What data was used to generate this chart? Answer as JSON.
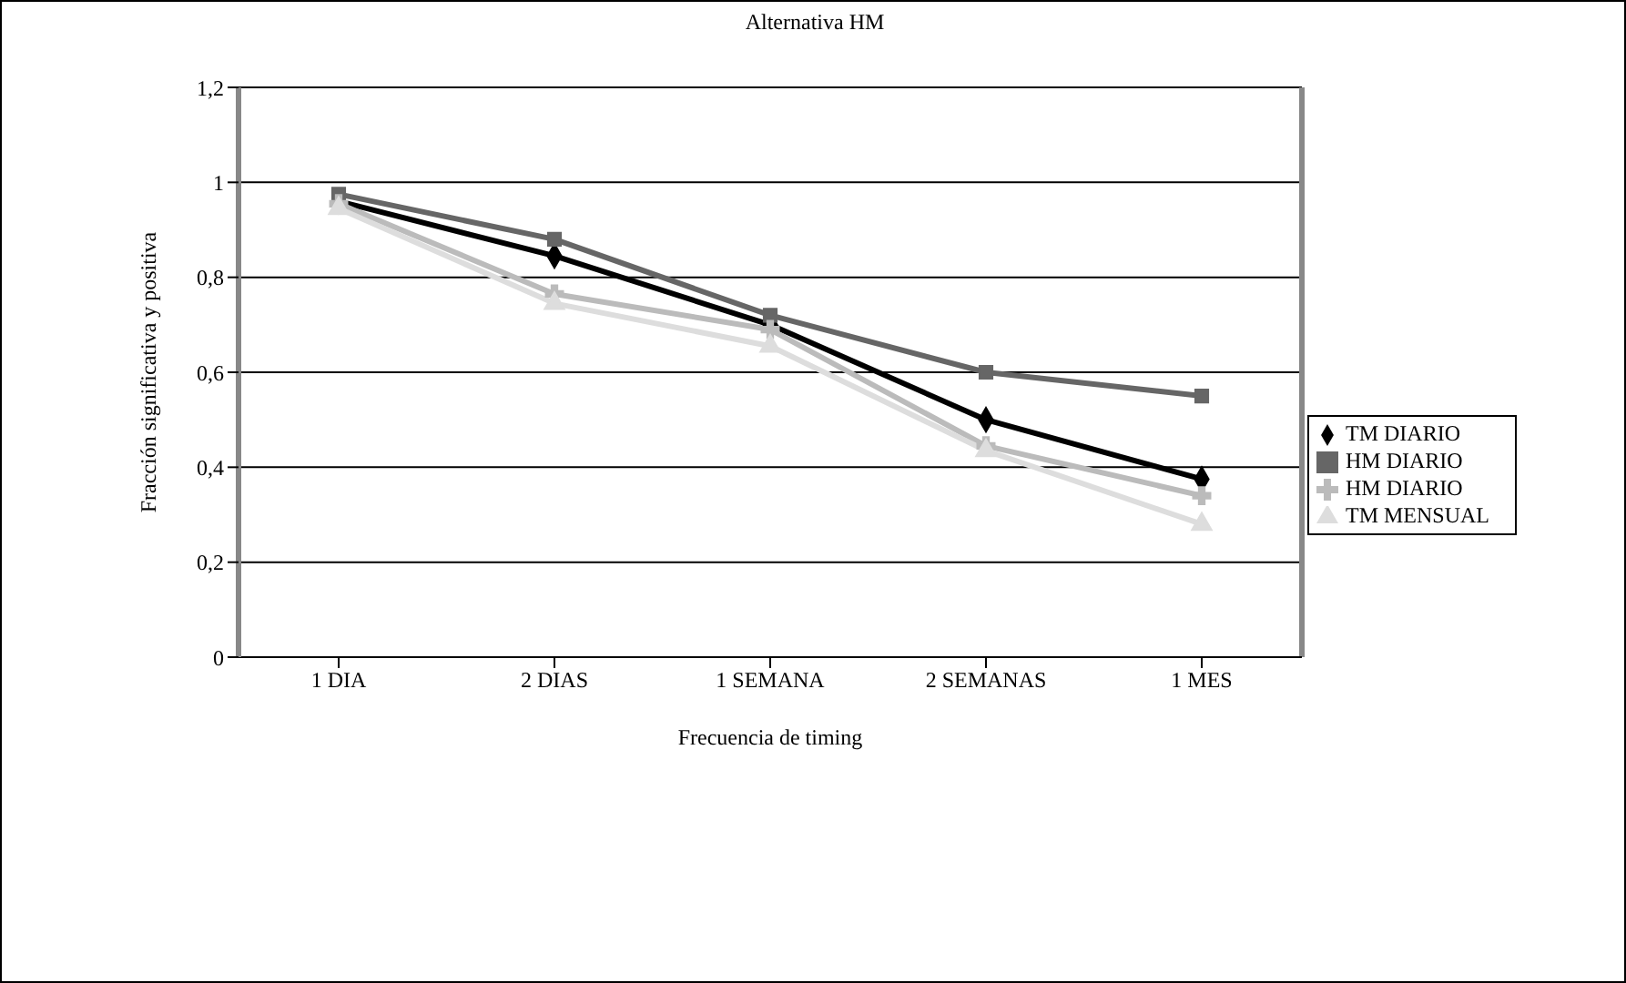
{
  "chart_data": {
    "type": "line",
    "title": "Alternativa HM",
    "xlabel": "Frecuencia de timing",
    "ylabel": "Fracción significativa y positiva",
    "categories": [
      "1 DIA",
      "2 DIAS",
      "1 SEMANA",
      "2 SEMANAS",
      "1 MES"
    ],
    "series": [
      {
        "name": "TM DIARIO",
        "color": "#000000",
        "marker": "diamond",
        "values": [
          0.96,
          0.845,
          0.7,
          0.5,
          0.375
        ]
      },
      {
        "name": "HM DIARIO",
        "color": "#666666",
        "marker": "square",
        "values": [
          0.975,
          0.88,
          0.72,
          0.6,
          0.55
        ]
      },
      {
        "name": "TM MENSUAL",
        "color": "#dddddd",
        "marker": "triangle",
        "values": [
          0.945,
          0.745,
          0.655,
          0.435,
          0.28
        ]
      },
      {
        "name": "HM DIARIO",
        "color": "#bbbbbb",
        "marker": "cross",
        "values": [
          0.955,
          0.765,
          0.69,
          0.445,
          0.34
        ]
      }
    ],
    "ylim": [
      0,
      1.2
    ],
    "yticks": [
      {
        "value": 0,
        "label": "0"
      },
      {
        "value": 0.2,
        "label": "0,2"
      },
      {
        "value": 0.4,
        "label": "0,4"
      },
      {
        "value": 0.6,
        "label": "0,6"
      },
      {
        "value": 0.8,
        "label": "0,8"
      },
      {
        "value": 1,
        "label": "1"
      },
      {
        "value": 1.2,
        "label": "1,2"
      }
    ],
    "grid": "y",
    "legend": "right",
    "line_style": "solid"
  }
}
